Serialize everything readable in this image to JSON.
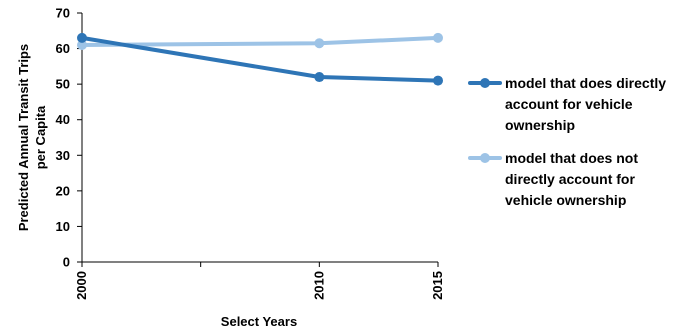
{
  "chart_data": {
    "type": "line",
    "x": [
      2000,
      2010,
      2015
    ],
    "x_tick_labels": [
      "2000",
      "2010",
      "2015"
    ],
    "xlim": [
      2000,
      2015
    ],
    "xlabel": "Select Years",
    "ylabel_lines": [
      "Predicted Annual Transit Trips",
      "per Capita"
    ],
    "ylim": [
      0,
      70
    ],
    "y_ticks": [
      0,
      10,
      20,
      30,
      40,
      50,
      60,
      70
    ],
    "grid": false,
    "legend_position": "right",
    "series": [
      {
        "name": "model that does directly account for vehicle ownership",
        "name_lines": [
          "model that does directly",
          "account for vehicle",
          "ownership"
        ],
        "values": [
          63,
          52,
          51
        ],
        "color": "#2e75b6"
      },
      {
        "name": "model that does not directly account for vehicle ownership",
        "name_lines": [
          "model that does not",
          "directly account for",
          "vehicle ownership"
        ],
        "values": [
          61,
          61.5,
          63
        ],
        "color": "#9dc3e6"
      }
    ]
  }
}
